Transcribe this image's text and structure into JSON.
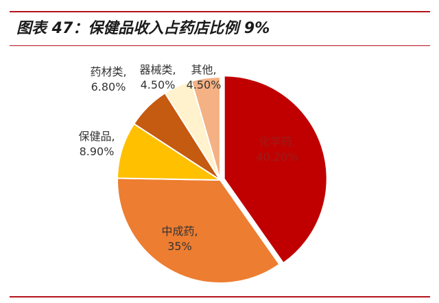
{
  "header": {
    "title": "图表 47：保健品收入占药店比例 9%",
    "rule_color": "#b5121b"
  },
  "chart_data": {
    "type": "pie",
    "title": "",
    "slices": [
      {
        "name": "化学药",
        "label_line1": "化学药,",
        "label_line2": "40.20%",
        "value": 40.2,
        "color": "#c00000"
      },
      {
        "name": "中成药",
        "label_line1": "中成药,",
        "label_line2": "35%",
        "value": 35.0,
        "color": "#ed7d31"
      },
      {
        "name": "保健品",
        "label_line1": "保健品,",
        "label_line2": "8.90%",
        "value": 8.9,
        "color": "#ffc000"
      },
      {
        "name": "药材类",
        "label_line1": "药材类,",
        "label_line2": "6.80%",
        "value": 6.8,
        "color": "#c55a11"
      },
      {
        "name": "器械类",
        "label_line1": "器械类,",
        "label_line2": "4.50%",
        "value": 4.5,
        "color": "#fff2cc"
      },
      {
        "name": "其他",
        "label_line1": "其他,",
        "label_line2": "4.50%",
        "value": 4.5,
        "color": "#f4b183"
      }
    ],
    "start_angle_deg": 0,
    "direction": "clockwise",
    "legend": "none"
  }
}
